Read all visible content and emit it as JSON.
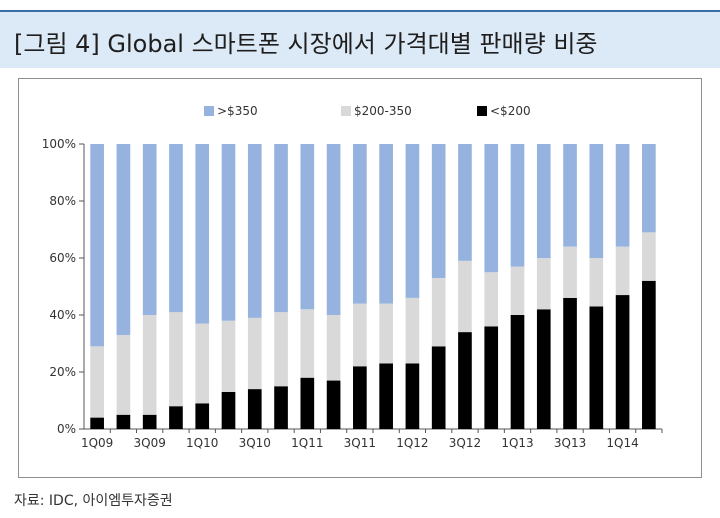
{
  "header": {
    "title": "[그림 4]  Global 스마트폰 시장에서 가격대별 판매량 비중"
  },
  "source": "자료: IDC, 아이엠투자증권",
  "colors": {
    "over350": "#95b3de",
    "mid": "#d9d9d9",
    "under200": "#000000",
    "title_bg": "#dce9f6"
  },
  "chart_data": {
    "type": "bar",
    "stacked": true,
    "categories": [
      "1Q09",
      "2Q09",
      "3Q09",
      "4Q09",
      "1Q10",
      "2Q10",
      "3Q10",
      "4Q10",
      "1Q11",
      "2Q11",
      "3Q11",
      "4Q11",
      "1Q12",
      "2Q12",
      "3Q12",
      "4Q12",
      "1Q13",
      "2Q13",
      "3Q13",
      "4Q13",
      "1Q14",
      "2Q14"
    ],
    "tick_labels": [
      "1Q09",
      "3Q09",
      "1Q10",
      "3Q10",
      "1Q11",
      "3Q11",
      "1Q12",
      "3Q12",
      "1Q13",
      "3Q13",
      "1Q14"
    ],
    "ylim": [
      0,
      100
    ],
    "yticks": [
      "0%",
      "20%",
      "40%",
      "60%",
      "80%",
      "100%"
    ],
    "legend_position": "top",
    "series": [
      {
        "name": "<$200",
        "color": "#000000",
        "values": [
          4,
          5,
          5,
          8,
          9,
          13,
          14,
          15,
          18,
          17,
          22,
          23,
          23,
          29,
          34,
          36,
          40,
          42,
          46,
          43,
          47,
          52
        ]
      },
      {
        "name": "$200-350",
        "color": "#d9d9d9",
        "values": [
          25,
          28,
          35,
          33,
          28,
          25,
          25,
          26,
          24,
          23,
          22,
          21,
          23,
          24,
          25,
          19,
          17,
          18,
          18,
          17,
          17,
          17
        ]
      },
      {
        "name": ">$350",
        "color": "#95b3de",
        "values": [
          71,
          67,
          60,
          59,
          63,
          62,
          61,
          59,
          58,
          60,
          56,
          56,
          54,
          47,
          41,
          45,
          43,
          40,
          36,
          40,
          36,
          31
        ]
      }
    ],
    "legend_order": [
      ">$350",
      "$200-350",
      "<$200"
    ]
  }
}
